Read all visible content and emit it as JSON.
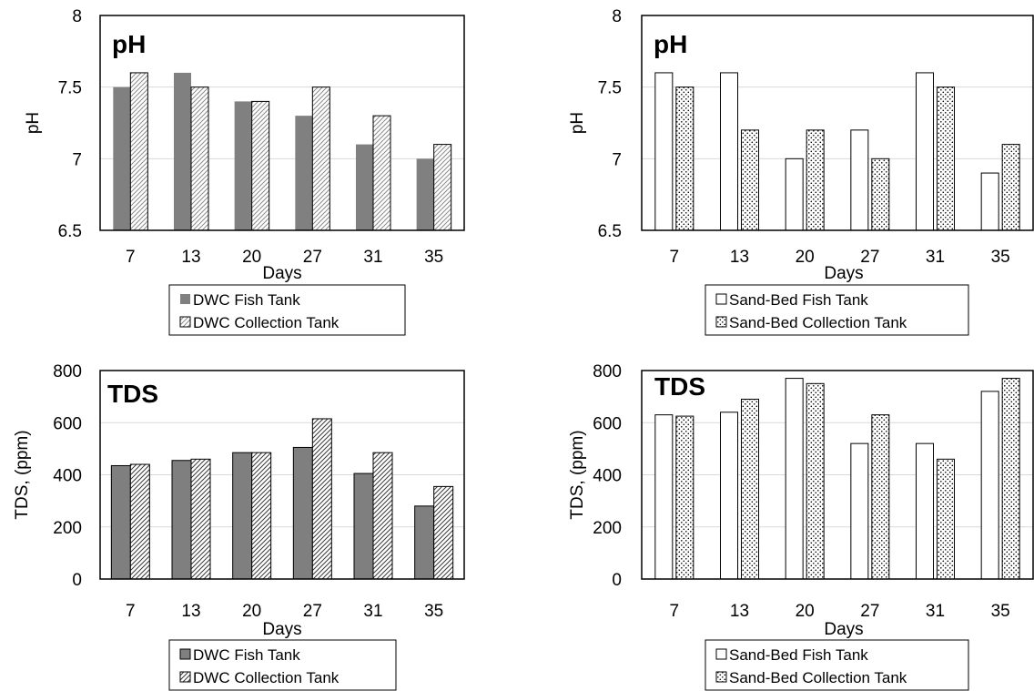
{
  "chart_data": [
    {
      "type": "bar",
      "title": "pH",
      "categories": [
        "7",
        "13",
        "20",
        "27",
        "31",
        "35"
      ],
      "xlabel": "Days",
      "ylabel": "pH",
      "ylim": [
        6.5,
        8
      ],
      "yticks": [
        "6.5",
        "7",
        "7.5",
        "8"
      ],
      "grid": true,
      "legend_position": "bottom",
      "series": [
        {
          "name": "DWC Fish Tank",
          "values": [
            7.5,
            7.6,
            7.4,
            7.3,
            7.1,
            7.0
          ],
          "fill": "solid-gray",
          "color": "#808080"
        },
        {
          "name": "DWC Collection Tank",
          "values": [
            7.6,
            7.5,
            7.4,
            7.5,
            7.3,
            7.1
          ],
          "fill": "diagonal-hatch",
          "color": "#a6a6a6"
        }
      ]
    },
    {
      "type": "bar",
      "title": "pH",
      "categories": [
        "7",
        "13",
        "20",
        "27",
        "31",
        "35"
      ],
      "xlabel": "Days",
      "ylabel": "pH",
      "ylim": [
        6.5,
        8
      ],
      "yticks": [
        "6.5",
        "7",
        "7.5",
        "8"
      ],
      "grid": true,
      "legend_position": "bottom",
      "series": [
        {
          "name": "Sand-Bed Fish Tank",
          "values": [
            7.6,
            7.6,
            7.0,
            7.2,
            7.6,
            6.9
          ],
          "fill": "white",
          "color": "#ffffff"
        },
        {
          "name": "Sand-Bed Collection Tank",
          "values": [
            7.5,
            7.2,
            7.2,
            7.0,
            7.5,
            7.1
          ],
          "fill": "dots",
          "color": "#000000"
        }
      ]
    },
    {
      "type": "bar",
      "title": "TDS",
      "categories": [
        "7",
        "13",
        "20",
        "27",
        "31",
        "35"
      ],
      "xlabel": "Days",
      "ylabel": "TDS, (ppm)",
      "ylim": [
        0,
        800
      ],
      "yticks": [
        "0",
        "200",
        "400",
        "600",
        "800"
      ],
      "grid": true,
      "legend_position": "bottom",
      "series": [
        {
          "name": "DWC Fish Tank",
          "values": [
            435,
            455,
            485,
            505,
            405,
            280
          ],
          "fill": "solid-darkgray",
          "color": "#7f7f7f"
        },
        {
          "name": "DWC Collection Tank",
          "values": [
            440,
            460,
            485,
            615,
            485,
            355
          ],
          "fill": "diagonal-hatch",
          "color": "#a6a6a6"
        }
      ]
    },
    {
      "type": "bar",
      "title": "TDS",
      "categories": [
        "7",
        "13",
        "20",
        "27",
        "31",
        "35"
      ],
      "xlabel": "Days",
      "ylabel": "TDS, (ppm)",
      "ylim": [
        0,
        800
      ],
      "yticks": [
        "0",
        "200",
        "400",
        "600",
        "800"
      ],
      "grid": true,
      "legend_position": "bottom",
      "series": [
        {
          "name": "Sand-Bed Fish Tank",
          "values": [
            630,
            640,
            770,
            520,
            520,
            720
          ],
          "fill": "white",
          "color": "#ffffff"
        },
        {
          "name": "Sand-Bed Collection Tank",
          "values": [
            625,
            690,
            750,
            630,
            460,
            770
          ],
          "fill": "dots",
          "color": "#000000"
        }
      ]
    }
  ]
}
